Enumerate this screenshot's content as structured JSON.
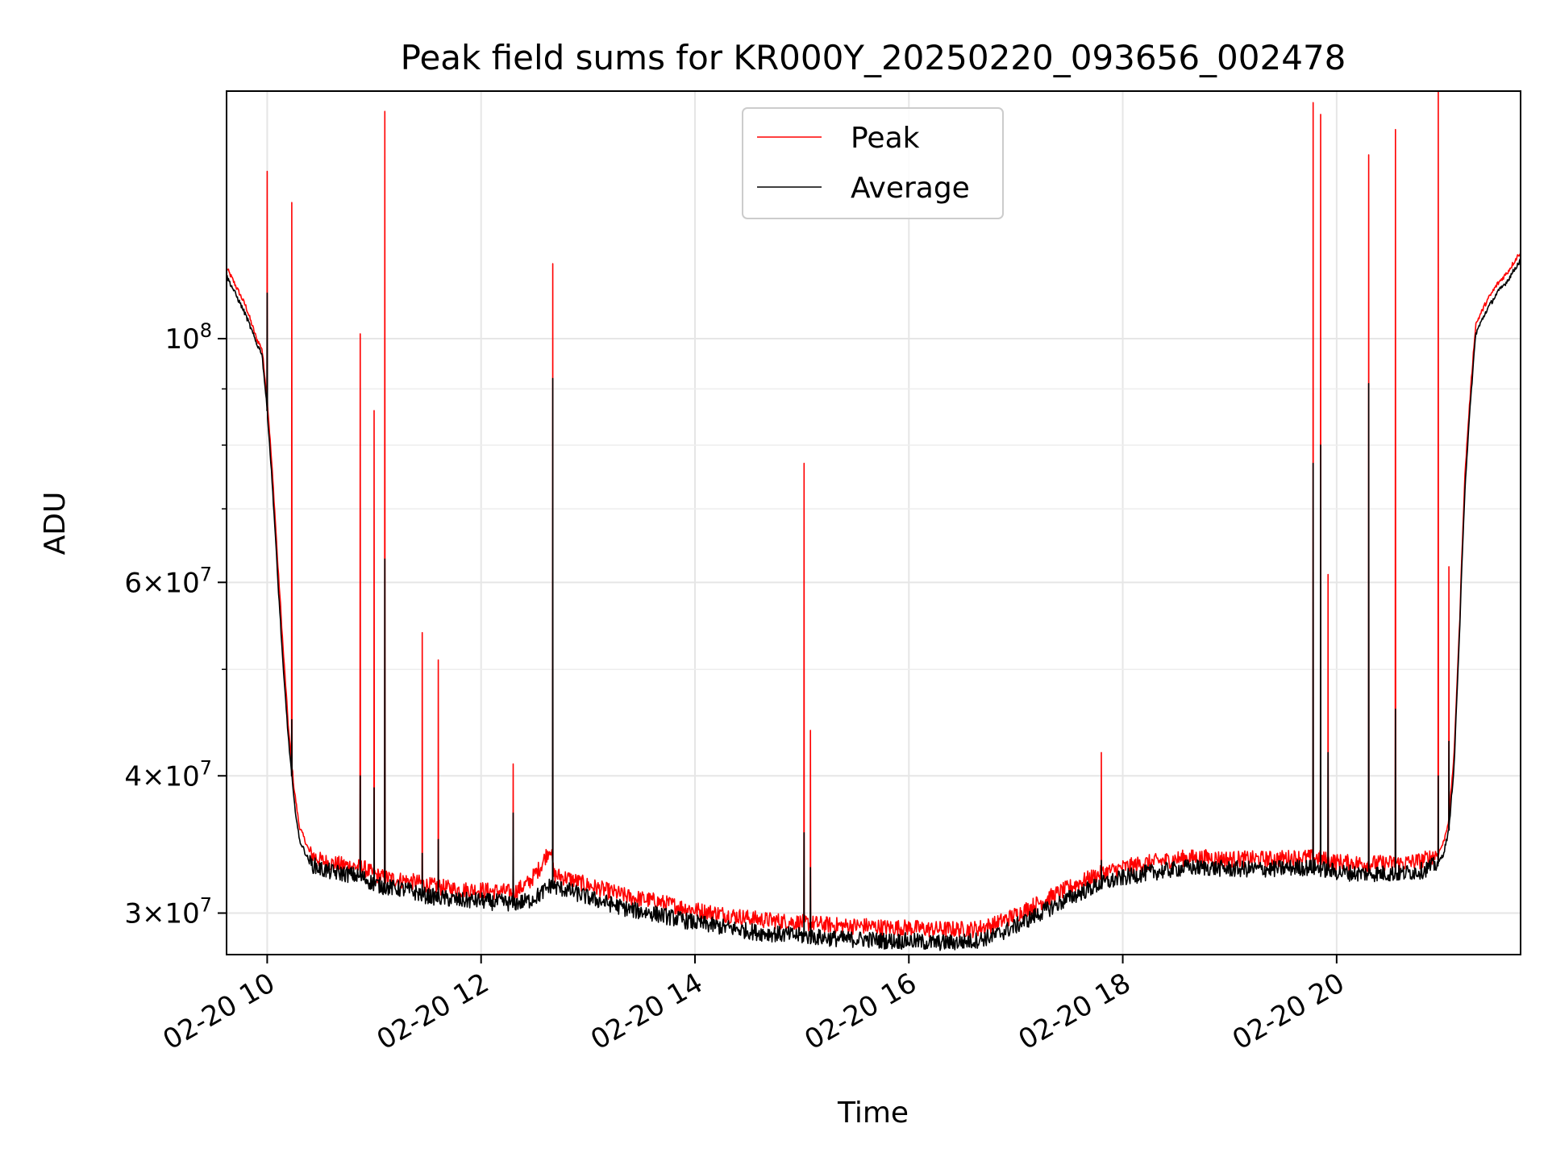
{
  "chart_data": {
    "type": "line",
    "title": "Peak field sums for KR000Y_20250220_093656_002478",
    "xlabel": "Time",
    "ylabel": "ADU",
    "yscale": "log",
    "xlim": [
      9.62,
      21.72
    ],
    "ylim": [
      27500000,
      168000000
    ],
    "grid": true,
    "legend_position": "top-center",
    "x_ticks": [
      {
        "value": 10,
        "label": "02-20 10"
      },
      {
        "value": 12,
        "label": "02-20 12"
      },
      {
        "value": 14,
        "label": "02-20 14"
      },
      {
        "value": 16,
        "label": "02-20 16"
      },
      {
        "value": 18,
        "label": "02-20 18"
      },
      {
        "value": 20,
        "label": "02-20 20"
      }
    ],
    "y_major_ticks": [
      {
        "value": 30000000,
        "mantissa": "3",
        "exponent": "7"
      },
      {
        "value": 40000000,
        "mantissa": "4",
        "exponent": "7"
      },
      {
        "value": 60000000,
        "mantissa": "6",
        "exponent": "7"
      },
      {
        "value": 100000000,
        "mantissa": "",
        "exponent": "8"
      }
    ],
    "y_minor_ticks": [
      50000000,
      70000000,
      80000000,
      90000000
    ],
    "series": [
      {
        "name": "Peak",
        "color": "#ff0000",
        "x": [
          9.62,
          9.7,
          9.8,
          9.9,
          9.95,
          10.0,
          10.05,
          10.1,
          10.15,
          10.2,
          10.25,
          10.3,
          10.4,
          10.5,
          10.6,
          10.7,
          10.8,
          10.9,
          11.0,
          11.1,
          11.2,
          11.3,
          11.4,
          11.5,
          11.6,
          11.7,
          11.8,
          11.9,
          12.0,
          12.1,
          12.2,
          12.3,
          12.45,
          12.55,
          12.65,
          12.68,
          12.8,
          13.0,
          13.2,
          13.4,
          13.6,
          13.8,
          14.0,
          14.2,
          14.4,
          14.6,
          14.8,
          15.0,
          15.2,
          15.4,
          15.6,
          15.8,
          16.0,
          16.2,
          16.4,
          16.6,
          16.8,
          17.0,
          17.2,
          17.4,
          17.6,
          17.8,
          18.0,
          18.2,
          18.4,
          18.6,
          18.8,
          19.0,
          19.2,
          19.4,
          19.6,
          19.8,
          20.0,
          20.2,
          20.4,
          20.6,
          20.8,
          20.95,
          21.0,
          21.05,
          21.1,
          21.15,
          21.2,
          21.3,
          21.4,
          21.5,
          21.6,
          21.72
        ],
        "y": [
          116000000,
          112000000,
          107000000,
          100000000,
          98000000,
          88000000,
          75000000,
          62000000,
          52000000,
          44000000,
          39000000,
          36000000,
          34000000,
          33500000,
          33300000,
          33200000,
          33100000,
          33000000,
          32500000,
          32300000,
          32200000,
          32100000,
          32000000,
          31800000,
          31700000,
          31600000,
          31500000,
          31500000,
          31500000,
          31400000,
          31400000,
          31300000,
          32000000,
          33000000,
          34500000,
          32500000,
          32300000,
          31800000,
          31400000,
          31000000,
          30800000,
          30500000,
          30200000,
          30000000,
          29800000,
          29600000,
          29500000,
          29400000,
          29300000,
          29200000,
          29200000,
          29100000,
          29100000,
          29000000,
          29000000,
          29000000,
          29300000,
          29900000,
          30600000,
          31300000,
          32000000,
          32600000,
          33000000,
          33300000,
          33500000,
          33700000,
          33700000,
          33600000,
          33600000,
          33600000,
          33700000,
          33700000,
          33400000,
          33300000,
          33300000,
          33300000,
          33500000,
          34000000,
          34800000,
          36500000,
          42000000,
          55000000,
          75000000,
          103000000,
          108000000,
          112000000,
          115000000,
          120000000
        ]
      },
      {
        "name": "Average",
        "color": "#000000",
        "x": [
          9.62,
          9.7,
          9.8,
          9.9,
          9.95,
          10.0,
          10.05,
          10.1,
          10.15,
          10.2,
          10.25,
          10.3,
          10.4,
          10.5,
          10.6,
          10.7,
          10.8,
          10.9,
          11.0,
          11.1,
          11.2,
          11.3,
          11.4,
          11.5,
          11.6,
          11.7,
          11.8,
          11.9,
          12.0,
          12.1,
          12.2,
          12.3,
          12.45,
          12.55,
          12.65,
          12.68,
          12.8,
          13.0,
          13.2,
          13.4,
          13.6,
          13.8,
          14.0,
          14.2,
          14.4,
          14.6,
          14.8,
          15.0,
          15.2,
          15.4,
          15.6,
          15.8,
          16.0,
          16.2,
          16.4,
          16.6,
          16.8,
          17.0,
          17.2,
          17.4,
          17.6,
          17.8,
          18.0,
          18.2,
          18.4,
          18.6,
          18.8,
          19.0,
          19.2,
          19.4,
          19.6,
          19.8,
          20.0,
          20.2,
          20.4,
          20.6,
          20.8,
          20.95,
          21.0,
          21.05,
          21.1,
          21.15,
          21.2,
          21.3,
          21.4,
          21.5,
          21.6,
          21.72
        ],
        "y": [
          114000000,
          110000000,
          105000000,
          99000000,
          97000000,
          86000000,
          73000000,
          60000000,
          50000000,
          43000000,
          38000000,
          35000000,
          33300000,
          32900000,
          32700000,
          32600000,
          32500000,
          32300000,
          31900000,
          31700000,
          31600000,
          31500000,
          31300000,
          31100000,
          31000000,
          30900000,
          30800000,
          30800000,
          30800000,
          30700000,
          30700000,
          30600000,
          30800000,
          31200000,
          31800000,
          31700000,
          31500000,
          31000000,
          30600000,
          30200000,
          30000000,
          29700000,
          29400000,
          29200000,
          29000000,
          28800000,
          28700000,
          28600000,
          28500000,
          28400000,
          28400000,
          28300000,
          28300000,
          28200000,
          28200000,
          28300000,
          28600000,
          29200000,
          29900000,
          30600000,
          31300000,
          31900000,
          32300000,
          32600000,
          32800000,
          33000000,
          33000000,
          32900000,
          32900000,
          32900000,
          33000000,
          33000000,
          32700000,
          32600000,
          32600000,
          32600000,
          32800000,
          33300000,
          34000000,
          35700000,
          41000000,
          54000000,
          73000000,
          101000000,
          106000000,
          110000000,
          113000000,
          118000000
        ]
      }
    ],
    "spikes": [
      {
        "x": 10.0,
        "peak": 142000000,
        "average": 110000000
      },
      {
        "x": 10.23,
        "peak": 133000000,
        "average": 45000000
      },
      {
        "x": 10.87,
        "peak": 101000000,
        "average": 40000000
      },
      {
        "x": 11.0,
        "peak": 86000000,
        "average": 39000000
      },
      {
        "x": 11.1,
        "peak": 161000000,
        "average": 63000000
      },
      {
        "x": 11.45,
        "peak": 54000000,
        "average": 34000000
      },
      {
        "x": 11.6,
        "peak": 51000000,
        "average": 35000000
      },
      {
        "x": 12.3,
        "peak": 41000000,
        "average": 37000000
      },
      {
        "x": 12.67,
        "peak": 117000000,
        "average": 92000000
      },
      {
        "x": 15.02,
        "peak": 77000000,
        "average": 35500000
      },
      {
        "x": 15.08,
        "peak": 44000000,
        "average": 33000000
      },
      {
        "x": 17.8,
        "peak": 42000000,
        "average": 33500000
      },
      {
        "x": 19.78,
        "peak": 164000000,
        "average": 77000000
      },
      {
        "x": 19.85,
        "peak": 160000000,
        "average": 80000000
      },
      {
        "x": 19.92,
        "peak": 61000000,
        "average": 42000000
      },
      {
        "x": 20.3,
        "peak": 147000000,
        "average": 91000000
      },
      {
        "x": 20.55,
        "peak": 155000000,
        "average": 46000000
      },
      {
        "x": 20.95,
        "peak": 168000000,
        "average": 40000000
      },
      {
        "x": 21.05,
        "peak": 62000000,
        "average": 43000000
      }
    ]
  }
}
